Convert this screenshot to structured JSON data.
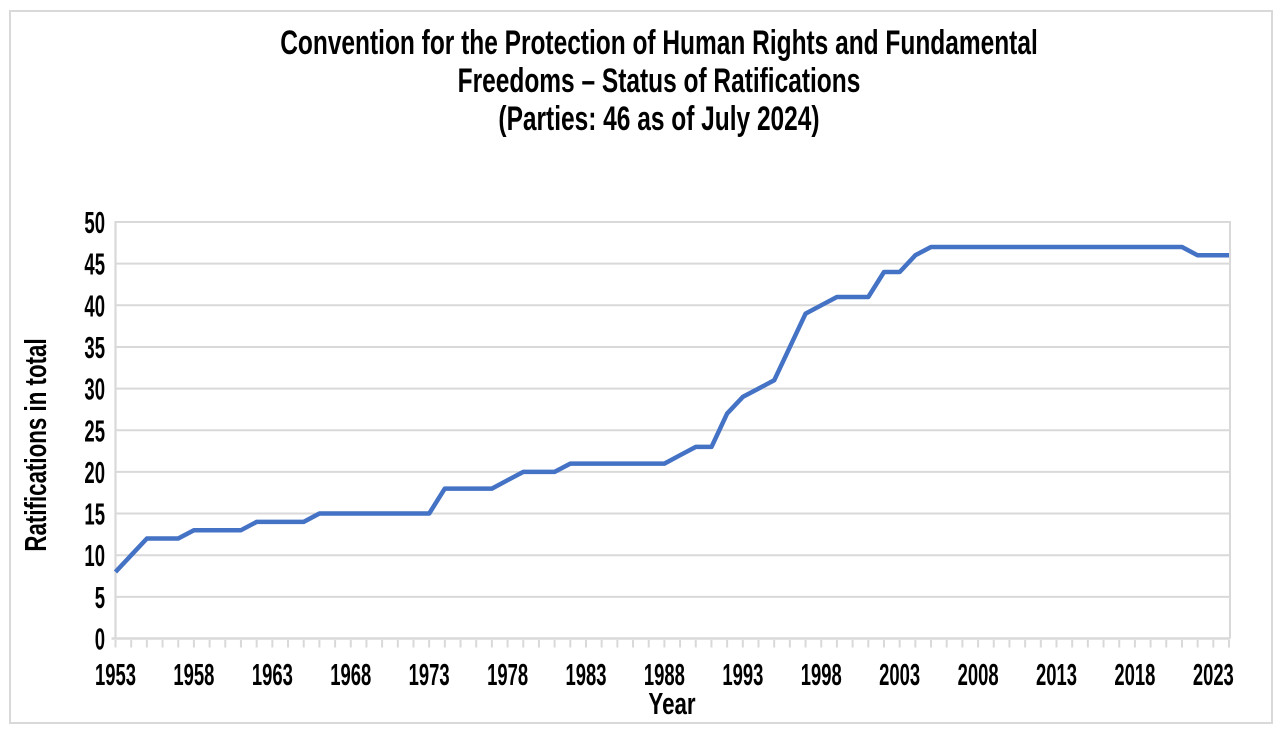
{
  "chart_data": {
    "type": "line",
    "title_lines": [
      "Convention for the Protection of Human Rights and Fundamental",
      "Freedoms – Status of Ratifications",
      "(Parties: 46 as of July 2024)"
    ],
    "xlabel": "Year",
    "ylabel": "Ratifications in total",
    "ylim": [
      0,
      50
    ],
    "y_ticks": [
      0,
      5,
      10,
      15,
      20,
      25,
      30,
      35,
      40,
      45,
      50
    ],
    "x_tick_labels": [
      1953,
      1958,
      1963,
      1968,
      1973,
      1978,
      1983,
      1988,
      1993,
      1998,
      2003,
      2008,
      2013,
      2018,
      2023
    ],
    "grid": "horizontal",
    "legend": "none",
    "series": [
      {
        "name": "Ratifications in total",
        "x": [
          1953,
          1954,
          1955,
          1956,
          1957,
          1958,
          1959,
          1960,
          1961,
          1962,
          1963,
          1964,
          1965,
          1966,
          1967,
          1968,
          1969,
          1970,
          1971,
          1972,
          1973,
          1974,
          1975,
          1976,
          1977,
          1978,
          1979,
          1980,
          1981,
          1982,
          1983,
          1984,
          1985,
          1986,
          1987,
          1988,
          1989,
          1990,
          1991,
          1992,
          1993,
          1994,
          1995,
          1996,
          1997,
          1998,
          1999,
          2000,
          2001,
          2002,
          2003,
          2004,
          2005,
          2006,
          2007,
          2008,
          2009,
          2010,
          2011,
          2012,
          2013,
          2014,
          2015,
          2016,
          2017,
          2018,
          2019,
          2020,
          2021,
          2022,
          2023,
          2024
        ],
        "values": [
          8,
          10,
          12,
          12,
          12,
          13,
          13,
          13,
          13,
          14,
          14,
          14,
          14,
          15,
          15,
          15,
          15,
          15,
          15,
          15,
          15,
          18,
          18,
          18,
          18,
          19,
          20,
          20,
          20,
          21,
          21,
          21,
          21,
          21,
          21,
          21,
          22,
          23,
          23,
          27,
          29,
          30,
          31,
          35,
          39,
          40,
          41,
          41,
          41,
          44,
          44,
          46,
          47,
          47,
          47,
          47,
          47,
          47,
          47,
          47,
          47,
          47,
          47,
          47,
          47,
          47,
          47,
          47,
          47,
          46,
          46,
          46
        ]
      }
    ],
    "colors": {
      "line": "#4472C4",
      "gridline": "#D9D9D9",
      "axis": "#D9D9D9",
      "text": "#000000",
      "background": "#FFFFFF"
    }
  }
}
